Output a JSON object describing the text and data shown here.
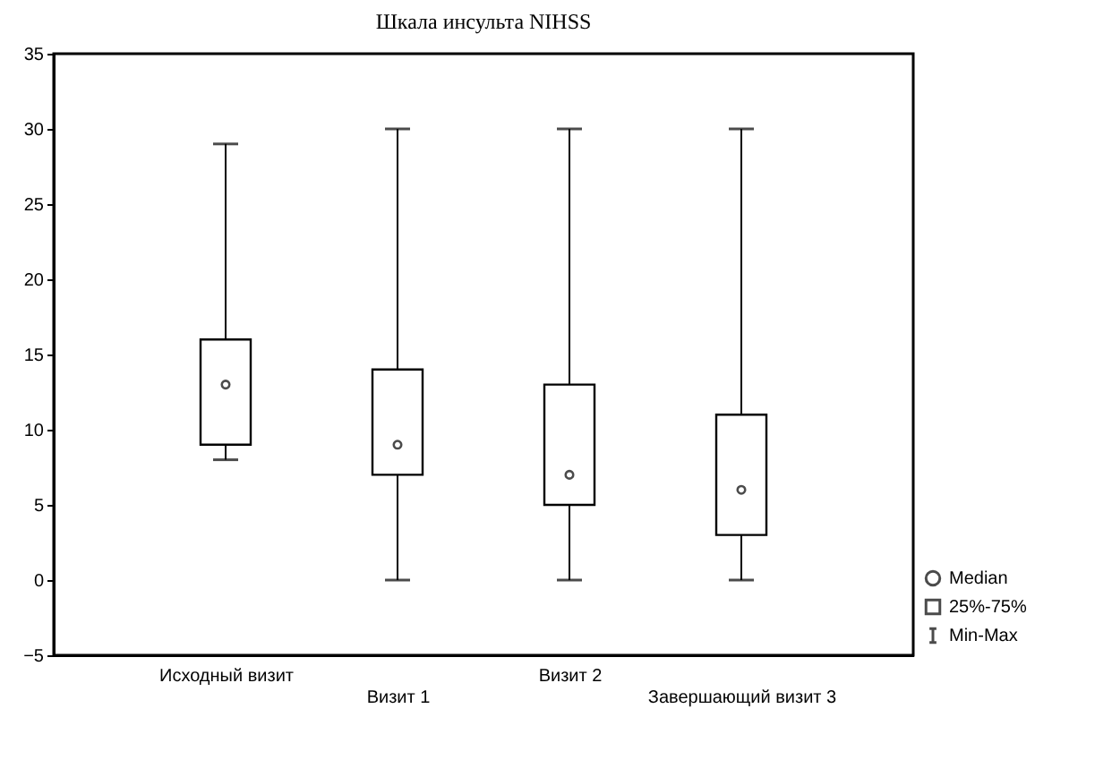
{
  "chart_data": {
    "type": "box",
    "title": "Шкала инсульта NIHSS",
    "categories": [
      "Исходный визит",
      "Визит 1",
      "Визит 2",
      "Завершающий визит 3"
    ],
    "boxes": [
      {
        "low": 8,
        "q1": 9,
        "median": 13,
        "q3": 16,
        "high": 29
      },
      {
        "low": 0,
        "q1": 7,
        "median": 9,
        "q3": 14,
        "high": 30
      },
      {
        "low": 0,
        "q1": 5,
        "median": 7,
        "q3": 13,
        "high": 30
      },
      {
        "low": 0,
        "q1": 3,
        "median": 6,
        "q3": 11,
        "high": 30
      }
    ],
    "ylim": [
      -5,
      35
    ],
    "yticks": [
      -5,
      0,
      5,
      10,
      15,
      20,
      25,
      30,
      35
    ],
    "annotations": [
      "Median",
      "25%-75%",
      "Min-Max"
    ],
    "marker": "circle"
  }
}
